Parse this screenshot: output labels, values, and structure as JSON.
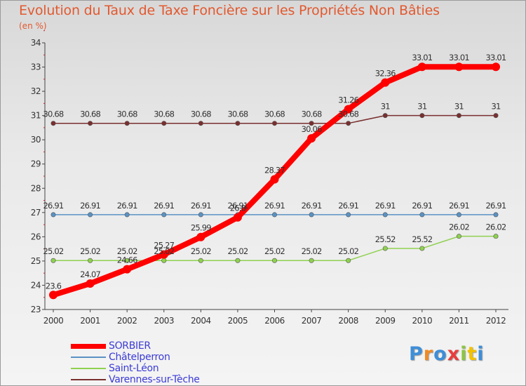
{
  "title": "Evolution du Taux de Taxe Foncière sur les Propriétés Non Bâties",
  "subtitle": "(en %)",
  "logo": "Proxiti",
  "chart_data": {
    "type": "line",
    "title": "Evolution du Taux de Taxe Foncière sur les Propriétés Non Bâties",
    "ylabel": "(en %)",
    "xlabel": "",
    "ylim": [
      23,
      34
    ],
    "yticks": [
      23,
      24,
      25,
      26,
      27,
      28,
      29,
      30,
      31,
      32,
      33,
      34
    ],
    "categories": [
      "2000",
      "2001",
      "2002",
      "2003",
      "2004",
      "2005",
      "2006",
      "2007",
      "2008",
      "2009",
      "2010",
      "2011",
      "2012"
    ],
    "grid": false,
    "series": [
      {
        "name": "SORBIER",
        "color": "#ff0000",
        "highlight": true,
        "values": [
          23.6,
          24.07,
          24.66,
          25.27,
          25.99,
          26.8,
          28.37,
          30.06,
          31.26,
          32.36,
          33.01,
          33.01,
          33.01
        ]
      },
      {
        "name": "Châtelperron",
        "color": "#5a92c4",
        "values": [
          26.91,
          26.91,
          26.91,
          26.91,
          26.91,
          26.91,
          26.91,
          26.91,
          26.91,
          26.91,
          26.91,
          26.91,
          26.91
        ]
      },
      {
        "name": "Saint-Léon",
        "color": "#8fd14f",
        "values": [
          25.02,
          25.02,
          25.02,
          25.02,
          25.02,
          25.02,
          25.02,
          25.02,
          25.02,
          25.52,
          25.52,
          26.02,
          26.02
        ]
      },
      {
        "name": "Varennes-sur-Tèche",
        "color": "#7a2f2f",
        "values": [
          30.68,
          30.68,
          30.68,
          30.68,
          30.68,
          30.68,
          30.68,
          30.68,
          30.68,
          31,
          31,
          31,
          31
        ]
      }
    ],
    "data_labels": [
      [
        "23.6",
        "24.07",
        "24.66",
        "25.27",
        "25.99",
        "26.8",
        "28.37",
        "30.06",
        "31.26",
        "32.36",
        "33.01",
        "33.01",
        "33.01"
      ],
      [
        "26.91",
        "26.91",
        "26.91",
        "26.91",
        "26.91",
        "26.91",
        "26.91",
        "26.91",
        "26.91",
        "26.91",
        "26.91",
        "26.91",
        "26.91"
      ],
      [
        "25.02",
        "25.02",
        "25.02",
        "25.02",
        "25.02",
        "25.02",
        "25.02",
        "25.02",
        "25.02",
        "25.52",
        "25.52",
        "26.02",
        "26.02"
      ],
      [
        "30.68",
        "30.68",
        "30.68",
        "30.68",
        "30.68",
        "30.68",
        "30.68",
        "30.68",
        "30.68",
        "31",
        "31",
        "31",
        "31"
      ]
    ]
  }
}
